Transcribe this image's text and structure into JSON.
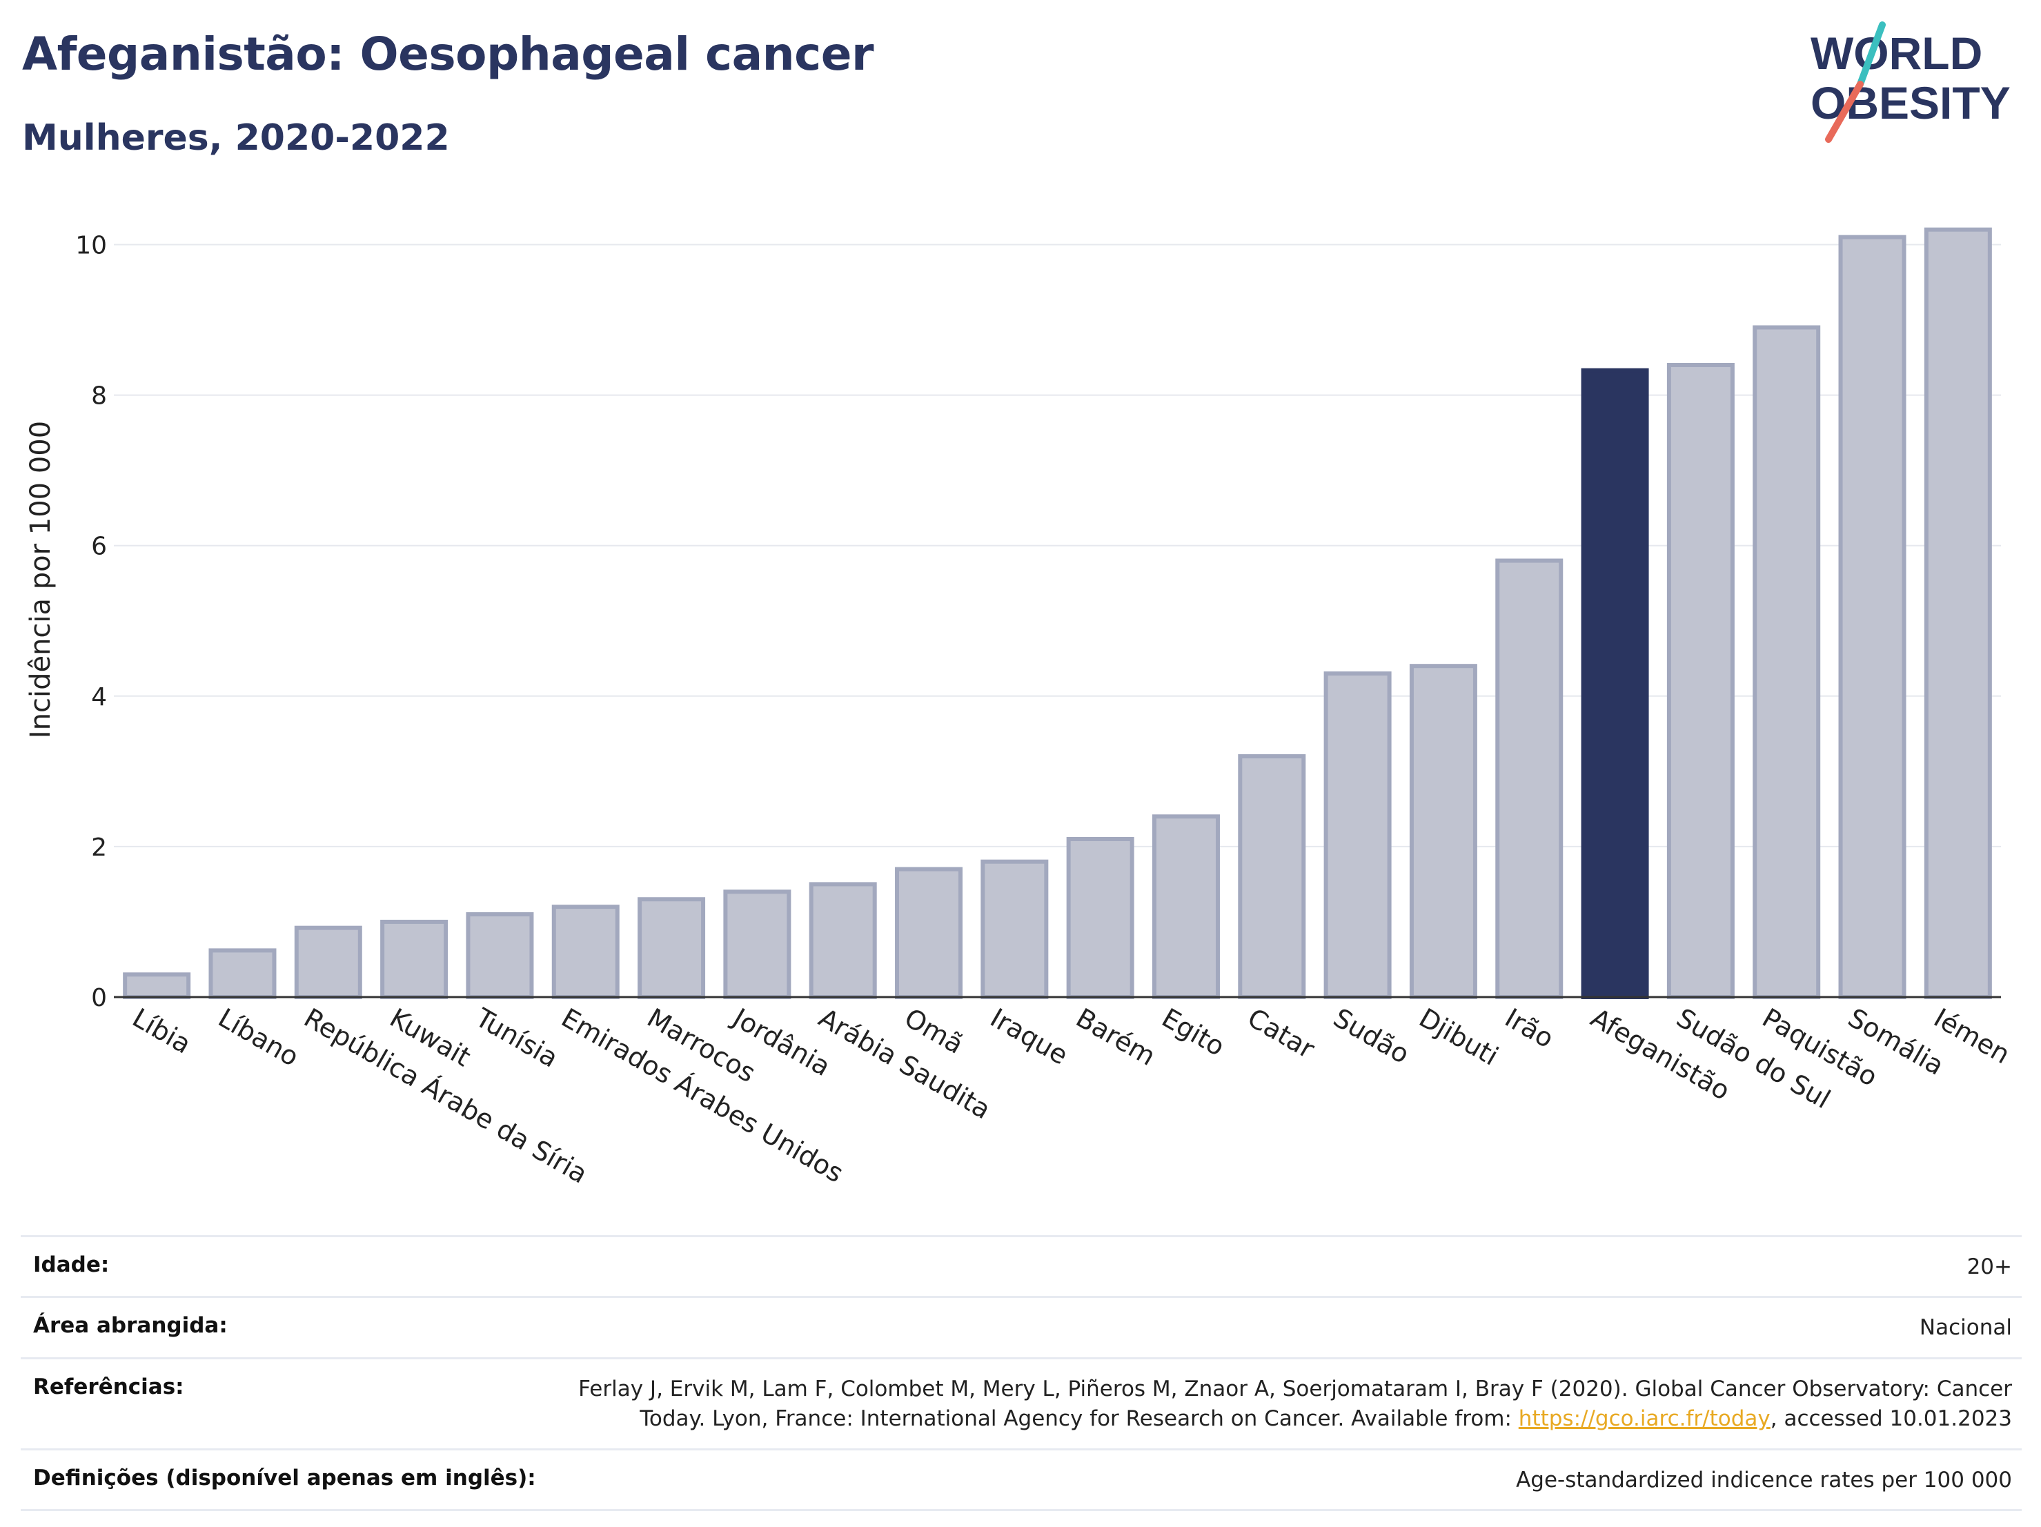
{
  "title": "Afeganistão: Oesophageal cancer",
  "subtitle": "Mulheres, 2020-2022",
  "logo": {
    "line1": "WORLD",
    "line2": "OBESITY",
    "colors": {
      "text": "#2a3560",
      "accent_teal": "#3bbfbf",
      "accent_coral": "#e86a5a"
    }
  },
  "colors": {
    "bar": "#c0c3d0",
    "bar_stroke": "#a2a8be",
    "highlight": "#2a3560",
    "grid": "#e6e8ee",
    "text": "#2a3560"
  },
  "chart_data": {
    "type": "bar",
    "ylabel": "Incidência por 100 000",
    "xlabel": "",
    "ylim": [
      0,
      10.5
    ],
    "yticks": [
      0,
      2,
      4,
      6,
      8,
      10
    ],
    "grid": true,
    "highlight": "Afeganistão",
    "categories": [
      "Líbia",
      "Líbano",
      "República Árabe da Síria",
      "Kuwait",
      "Tunísia",
      "Emirados Árabes Unidos",
      "Marrocos",
      "Jordânia",
      "Arábia Saudita",
      "Omã",
      "Iraque",
      "Barém",
      "Egito",
      "Catar",
      "Sudão",
      "Djibuti",
      "Irão",
      "Afeganistão",
      "Sudão do Sul",
      "Paquistão",
      "Somália",
      "Iémen"
    ],
    "values": [
      0.3,
      0.62,
      0.92,
      1.0,
      1.1,
      1.2,
      1.3,
      1.4,
      1.5,
      1.7,
      1.8,
      2.1,
      2.4,
      3.2,
      4.3,
      4.4,
      5.8,
      8.33,
      8.4,
      8.9,
      10.1,
      10.2
    ]
  },
  "meta": [
    {
      "key": "Idade:",
      "value": "20+"
    },
    {
      "key": "Área abrangida:",
      "value": "Nacional"
    },
    {
      "key": "Referências:",
      "value_before": "Ferlay J, Ervik M, Lam F, Colombet M, Mery L, Piñeros M, Znaor A, Soerjomataram I, Bray F (2020). Global Cancer Observatory: Cancer Today. Lyon, France: International Agency for Research on Cancer. Available from: ",
      "link": "https://gco.iarc.fr/today",
      "value_after": ", accessed 10.01.2023"
    },
    {
      "key": "Definições (disponível apenas em inglês):",
      "value": "Age-standardized indicence rates per 100 000"
    }
  ]
}
